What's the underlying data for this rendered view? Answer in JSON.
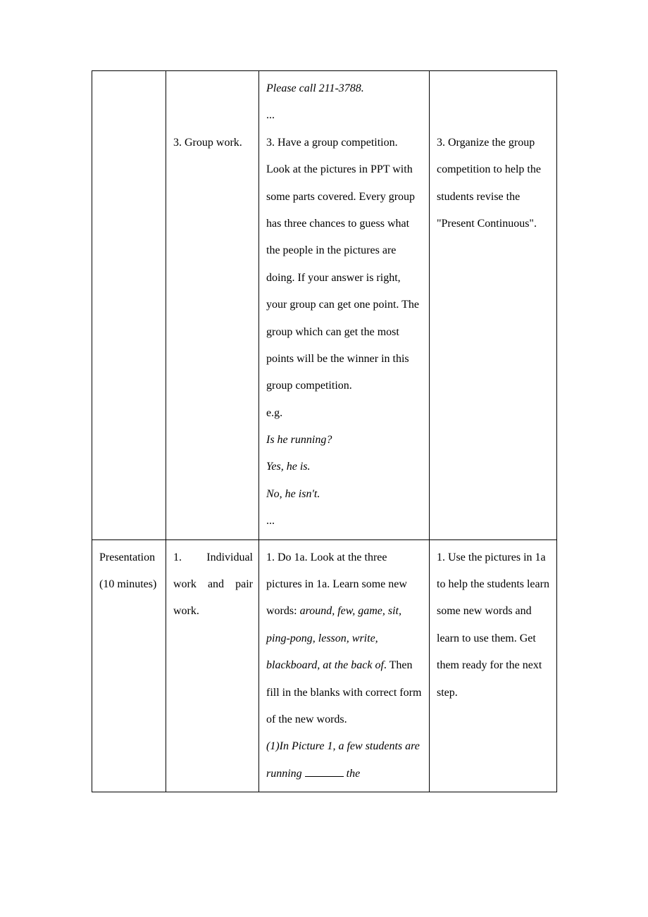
{
  "row1": {
    "col2": {
      "item3": "3. Group work."
    },
    "col3": {
      "line1": "Please call 211-3788.",
      "line2": "...",
      "item3_p1": "3. Have a group competition. Look at the pictures in PPT with some parts covered. Every group has three chances to guess what the people in the pictures are doing. If your answer is right, your group can get one point. The group which can get the most points will be the winner in this group competition.",
      "eg": "e.g.",
      "q1": "Is he running?",
      "a1": "Yes, he is.",
      "a2": "No, he isn't.",
      "dots": "..."
    },
    "col4": {
      "item3": "3. Organize the group competition to help the students revise the \"Present Continuous\"."
    }
  },
  "row2": {
    "col1": {
      "title": "Presentation",
      "time": "(10 minutes)"
    },
    "col2": {
      "item1a": "1. Individual",
      "item1b": "work and pair",
      "item1c": "work."
    },
    "col3": {
      "p1a": "1. Do 1a. Look at the three pictures in 1a. Learn some new words: ",
      "words": "around, few, game, sit, ping-pong, lesson, write, blackboard, at the back of",
      "p1b": ". Then fill in the blanks with correct form of the new words.",
      "ex1a": "(1)In Picture 1, a few students are running ",
      "ex1b": " the"
    },
    "col4": {
      "item1": "1. Use the pictures in 1a to help the students learn some new words and learn to use them. Get them ready for the next step."
    }
  }
}
